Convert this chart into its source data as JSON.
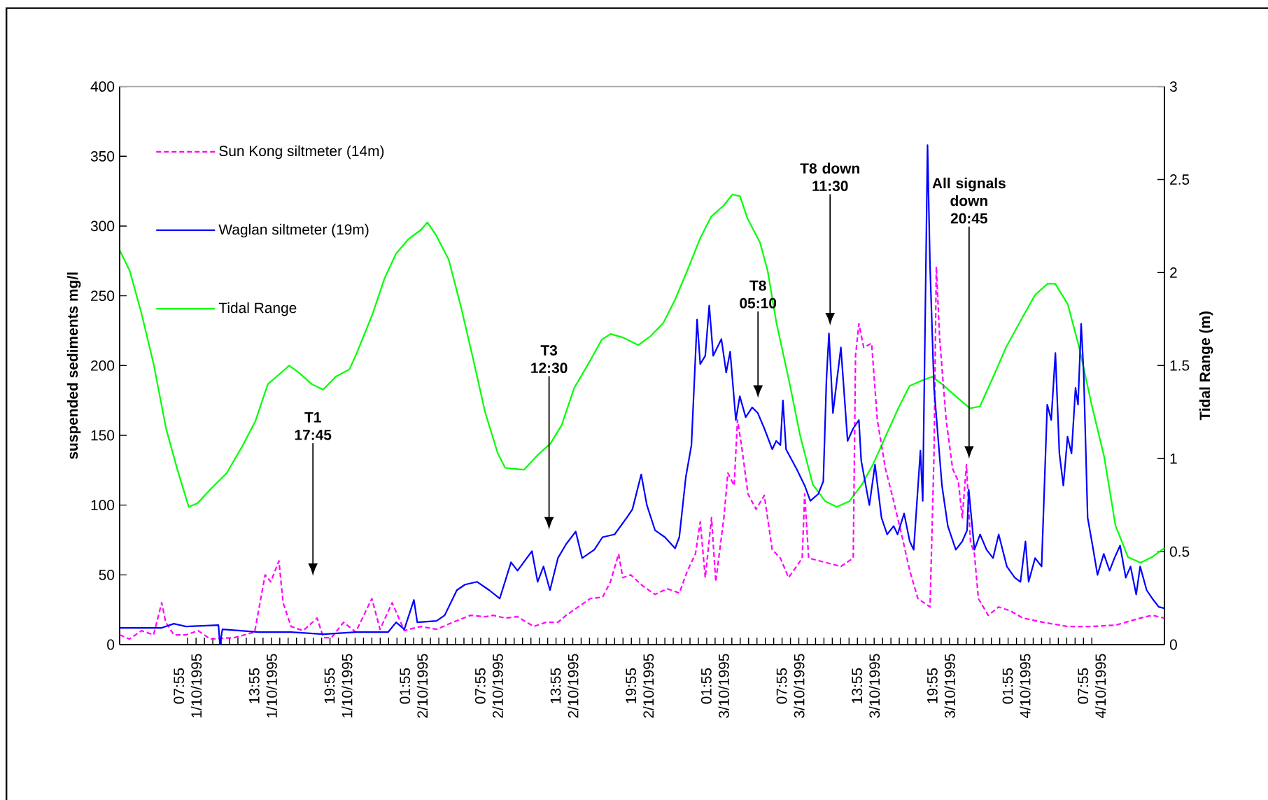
{
  "chart_data": {
    "type": "line",
    "ylabel": "suspended sediments mg/l",
    "y2label": "Tidal Range (m)",
    "xlim": [
      "1995-10-01T02:30",
      "1995-10-04T13:42"
    ],
    "xticks": [
      {
        "value": "1995-10-01T07:55",
        "label": "07:55 1/10/1995"
      },
      {
        "value": "1995-10-01T13:55",
        "label": "13:55 1/10/1995"
      },
      {
        "value": "1995-10-01T19:55",
        "label": "19:55 1/10/1995"
      },
      {
        "value": "1995-10-02T01:55",
        "label": "01:55 2/10/1995"
      },
      {
        "value": "1995-10-02T07:55",
        "label": "07:55 2/10/1995"
      },
      {
        "value": "1995-10-02T13:55",
        "label": "13:55 2/10/1995"
      },
      {
        "value": "1995-10-02T19:55",
        "label": "19:55 2/10/1995"
      },
      {
        "value": "1995-10-03T01:55",
        "label": "01:55 3/10/1995"
      },
      {
        "value": "1995-10-03T07:55",
        "label": "07:55 3/10/1995"
      },
      {
        "value": "1995-10-03T13:55",
        "label": "13:55 3/10/1995"
      },
      {
        "value": "1995-10-03T19:55",
        "label": "19:55 3/10/1995"
      },
      {
        "value": "1995-10-04T01:55",
        "label": "01:55 4/10/1995"
      },
      {
        "value": "1995-10-04T07:55",
        "label": "07:55 4/10/1995"
      }
    ],
    "ylim": [
      0,
      400
    ],
    "yticks": [
      0,
      50,
      100,
      150,
      200,
      250,
      300,
      350,
      400
    ],
    "y2lim": [
      0,
      3
    ],
    "y2ticks": [
      0,
      0.5,
      1,
      1.5,
      2,
      2.5,
      3
    ],
    "legend": "top left",
    "marker": "none",
    "annotations": [
      "T1 17:45",
      "T3 12:30",
      "T8 05:10",
      "T8 down 11:30",
      "All signals down 20:45"
    ],
    "series": [
      {
        "name": "Sun Kong siltmeter (14m)",
        "color": "#ff00ff",
        "line_style": "dashed",
        "x": [
          "1995-10-01T02:30",
          "1995-10-01T03:16",
          "1995-10-01T04:14",
          "1995-10-01T05:12",
          "1995-10-01T05:51",
          "1995-10-01T06:10",
          "1995-10-01T06:49",
          "1995-10-01T07:47",
          "1995-10-01T08:45",
          "1995-10-01T09:43",
          "1995-10-01T11:38",
          "1995-10-01T13:15",
          "1995-10-01T14:05",
          "1995-10-01T14:32",
          "1995-10-01T15:11",
          "1995-10-01T15:31",
          "1995-10-01T16:09",
          "1995-10-01T17:07",
          "1995-10-01T18:13",
          "1995-10-01T18:44",
          "1995-10-01T19:22",
          "1995-10-01T20:20",
          "1995-10-01T21:18",
          "1995-10-01T22:35",
          "1995-10-01T23:14",
          "1995-10-02T00:12",
          "1995-10-02T01:10",
          "1995-10-02T02:28",
          "1995-10-02T03:44",
          "1995-10-02T05:02",
          "1995-10-02T06:27",
          "1995-10-02T07:37",
          "1995-10-02T08:15",
          "1995-10-02T09:13",
          "1995-10-02T10:11",
          "1995-10-02T11:28",
          "1995-10-02T12:26",
          "1995-10-02T13:24",
          "1995-10-02T14:03",
          "1995-10-02T15:01",
          "1995-10-02T15:59",
          "1995-10-02T16:57",
          "1995-10-02T17:35",
          "1995-10-02T18:14",
          "1995-10-02T18:34",
          "1995-10-02T19:12",
          "1995-10-02T20:10",
          "1995-10-02T21:08",
          "1995-10-02T22:06",
          "1995-10-02T23:04",
          "1995-10-02T23:43",
          "1995-10-03T00:21",
          "1995-10-03T00:44",
          "1995-10-03T01:08",
          "1995-10-03T01:38",
          "1995-10-03T01:58",
          "1995-10-03T02:37",
          "1995-10-03T02:56",
          "1995-10-03T03:26",
          "1995-10-03T03:42",
          "1995-10-03T04:01",
          "1995-10-03T04:32",
          "1995-10-03T05:11",
          "1995-10-03T05:50",
          "1995-10-03T06:28",
          "1995-10-03T07:07",
          "1995-10-03T07:46",
          "1995-10-03T08:24",
          "1995-10-03T08:51",
          "1995-10-03T09:03",
          "1995-10-03T09:22",
          "1995-10-03T10:40",
          "1995-10-03T11:56",
          "1995-10-03T12:55",
          "1995-10-03T13:06",
          "1995-10-03T13:22",
          "1995-10-03T13:45",
          "1995-10-03T14:23",
          "1995-10-03T14:50",
          "1995-10-03T15:29",
          "1995-10-03T16:08",
          "1995-10-03T16:46",
          "1995-10-03T17:25",
          "1995-10-03T18:04",
          "1995-10-03T19:02",
          "1995-10-03T19:21",
          "1995-10-03T19:32",
          "1995-10-03T19:48",
          "1995-10-03T20:19",
          "1995-10-03T20:50",
          "1995-10-03T21:17",
          "1995-10-03T21:36",
          "1995-10-03T21:56",
          "1995-10-03T22:15",
          "1995-10-03T22:34",
          "1995-10-03T22:53",
          "1995-10-03T23:40",
          "1995-10-04T00:30",
          "1995-10-04T01:28",
          "1995-10-04T02:26",
          "1995-10-04T04:02",
          "1995-10-04T05:59",
          "1995-10-04T07:55",
          "1995-10-04T09:50",
          "1995-10-04T11:46",
          "1995-10-04T12:44",
          "1995-10-04T13:42"
        ],
        "values": [
          7,
          4,
          10,
          7,
          30,
          16,
          7,
          7,
          10,
          4,
          5,
          9,
          50,
          45,
          60,
          30,
          13,
          10,
          19,
          5,
          5,
          16,
          9,
          33,
          11,
          30,
          10,
          13,
          11,
          16,
          21,
          20,
          21,
          19,
          20,
          13,
          16,
          16,
          21,
          27,
          33,
          34,
          45,
          65,
          48,
          50,
          42,
          36,
          40,
          37,
          53,
          65,
          88,
          48,
          91,
          45,
          91,
          123,
          114,
          161,
          143,
          108,
          97,
          107,
          68,
          62,
          48,
          56,
          62,
          108,
          62,
          59,
          56,
          62,
          207,
          230,
          213,
          216,
          161,
          126,
          103,
          79,
          53,
          33,
          27,
          137,
          271,
          219,
          161,
          126,
          117,
          91,
          129,
          74,
          65,
          33,
          21,
          27,
          24,
          19,
          16,
          13,
          13,
          14,
          19,
          21,
          19
        ]
      },
      {
        "name": "Waglan siltmeter (19m)",
        "color": "#0000ff",
        "line_style": "solid",
        "x": [
          "1995-10-01T02:30",
          "1995-10-01T05:51",
          "1995-10-01T06:49",
          "1995-10-01T07:47",
          "1995-10-01T10:22",
          "1995-10-01T10:29",
          "1995-10-01T10:41",
          "1995-10-01T13:35",
          "1995-10-01T16:09",
          "1995-10-01T18:44",
          "1995-10-01T21:18",
          "1995-10-01T23:53",
          "1995-10-02T00:31",
          "1995-10-02T01:10",
          "1995-10-02T01:56",
          "1995-10-02T02:12",
          "1995-10-02T03:44",
          "1995-10-02T04:23",
          "1995-10-02T05:21",
          "1995-10-02T06:00",
          "1995-10-02T06:58",
          "1995-10-02T07:56",
          "1995-10-02T08:46",
          "1995-10-02T09:40",
          "1995-10-02T10:11",
          "1995-10-02T11:20",
          "1995-10-02T11:47",
          "1995-10-02T12:15",
          "1995-10-02T12:46",
          "1995-10-02T13:24",
          "1995-10-02T14:03",
          "1995-10-02T14:49",
          "1995-10-02T15:20",
          "1995-10-02T16:18",
          "1995-10-02T16:57",
          "1995-10-02T17:55",
          "1995-10-02T18:53",
          "1995-10-02T19:20",
          "1995-10-02T20:02",
          "1995-10-02T20:29",
          "1995-10-02T21:08",
          "1995-10-02T21:55",
          "1995-10-02T22:44",
          "1995-10-02T23:04",
          "1995-10-02T23:35",
          "1995-10-03T00:02",
          "1995-10-03T00:29",
          "1995-10-03T00:44",
          "1995-10-03T01:08",
          "1995-10-03T01:27",
          "1995-10-03T01:46",
          "1995-10-03T02:25",
          "1995-10-03T02:48",
          "1995-10-03T03:07",
          "1995-10-03T03:34",
          "1995-10-03T03:53",
          "1995-10-03T04:21",
          "1995-10-03T04:52",
          "1995-10-03T05:19",
          "1995-10-03T05:50",
          "1995-10-03T06:28",
          "1995-10-03T06:47",
          "1995-10-03T07:07",
          "1995-10-03T07:19",
          "1995-10-03T07:34",
          "1995-10-03T08:24",
          "1995-10-03T09:03",
          "1995-10-03T09:30",
          "1995-10-03T10:08",
          "1995-10-03T10:32",
          "1995-10-03T10:47",
          "1995-10-03T10:59",
          "1995-10-03T11:18",
          "1995-10-03T11:56",
          "1995-10-03T12:28",
          "1995-10-03T12:55",
          "1995-10-03T13:22",
          "1995-10-03T13:33",
          "1995-10-03T14:12",
          "1995-10-03T14:39",
          "1995-10-03T15:10",
          "1995-10-03T15:37",
          "1995-10-03T16:08",
          "1995-10-03T16:27",
          "1995-10-03T16:58",
          "1995-10-03T17:25",
          "1995-10-03T17:44",
          "1995-10-03T18:16",
          "1995-10-03T18:27",
          "1995-10-03T18:50",
          "1995-10-03T19:02",
          "1995-10-03T19:21",
          "1995-10-03T19:59",
          "1995-10-03T20:27",
          "1995-10-03T21:05",
          "1995-10-03T21:36",
          "1995-10-03T21:59",
          "1995-10-03T22:07",
          "1995-10-03T22:34",
          "1995-10-03T23:01",
          "1995-10-03T23:32",
          "1995-10-04T00:03",
          "1995-10-04T00:30",
          "1995-10-04T01:09",
          "1995-10-04T01:47",
          "1995-10-04T02:14",
          "1995-10-04T02:38",
          "1995-10-04T02:53",
          "1995-10-04T03:24",
          "1995-10-04T03:55",
          "1995-10-04T04:22",
          "1995-10-04T04:41",
          "1995-10-04T05:01",
          "1995-10-04T05:20",
          "1995-10-04T05:39",
          "1995-10-04T05:59",
          "1995-10-04T06:18",
          "1995-10-04T06:37",
          "1995-10-04T06:49",
          "1995-10-04T07:04",
          "1995-10-04T07:16",
          "1995-10-04T07:35",
          "1995-10-04T08:02",
          "1995-10-04T08:22",
          "1995-10-04T08:52",
          "1995-10-04T09:20",
          "1995-10-04T09:43",
          "1995-10-04T10:10",
          "1995-10-04T10:37",
          "1995-10-04T11:00",
          "1995-10-04T11:27",
          "1995-10-04T11:46",
          "1995-10-04T12:17",
          "1995-10-04T12:44",
          "1995-10-04T13:15",
          "1995-10-04T13:42"
        ],
        "values": [
          12,
          12,
          15,
          13,
          14,
          0,
          11,
          9,
          9,
          7.5,
          9,
          9,
          16,
          11,
          32,
          16,
          17,
          21,
          39,
          43,
          45,
          39,
          33,
          59,
          53,
          67,
          45,
          56,
          39,
          62,
          72,
          81,
          62,
          68,
          77,
          79,
          91,
          97,
          122,
          100,
          82,
          77,
          69,
          77,
          120,
          143,
          233,
          201,
          207,
          243,
          207,
          219,
          195,
          210,
          161,
          178,
          163,
          170,
          166,
          155,
          140,
          146,
          143,
          175,
          140,
          126,
          114,
          103,
          108,
          117,
          190,
          223,
          166,
          213,
          146,
          155,
          161,
          132,
          100,
          129,
          91,
          79,
          85,
          79,
          94,
          74,
          68,
          139,
          103,
          358,
          271,
          184,
          114,
          85,
          68,
          74,
          82,
          111,
          68,
          79,
          68,
          62,
          79,
          56,
          48,
          45,
          74,
          45,
          62,
          56,
          172,
          161,
          209,
          137,
          114,
          149,
          137,
          184,
          172,
          230,
          195,
          91,
          68,
          50,
          65,
          53,
          62,
          71,
          48,
          56,
          36,
          56,
          39,
          33,
          27,
          26
        ]
      },
      {
        "name": "Tidal Range",
        "color": "#00ff00",
        "line_style": "solid",
        "axis": "y2",
        "x": [
          "1995-10-01T02:30",
          "1995-10-01T03:18",
          "1995-10-01T04:12",
          "1995-10-01T05:12",
          "1995-10-01T06:12",
          "1995-10-01T07:06",
          "1995-10-01T08:00",
          "1995-10-01T08:42",
          "1995-10-01T09:48",
          "1995-10-01T11:00",
          "1995-10-01T12:18",
          "1995-10-01T13:18",
          "1995-10-01T14:18",
          "1995-10-01T15:30",
          "1995-10-01T16:00",
          "1995-10-01T16:48",
          "1995-10-01T17:48",
          "1995-10-01T18:42",
          "1995-10-01T19:42",
          "1995-10-01T20:48",
          "1995-10-01T21:24",
          "1995-10-01T22:36",
          "1995-10-01T23:36",
          "1995-10-02T00:30",
          "1995-10-02T01:30",
          "1995-10-02T02:30",
          "1995-10-02T03:00",
          "1995-10-02T03:42",
          "1995-10-02T04:42",
          "1995-10-02T05:42",
          "1995-10-02T06:36",
          "1995-10-02T07:36",
          "1995-10-02T08:36",
          "1995-10-02T09:12",
          "1995-10-02T10:42",
          "1995-10-02T11:48",
          "1995-10-02T12:48",
          "1995-10-02T13:42",
          "1995-10-02T14:42",
          "1995-10-02T16:00",
          "1995-10-02T16:54",
          "1995-10-02T17:36",
          "1995-10-02T18:36",
          "1995-10-02T19:48",
          "1995-10-02T20:48",
          "1995-10-02T21:48",
          "1995-10-02T22:42",
          "1995-10-02T23:42",
          "1995-10-03T00:42",
          "1995-10-03T01:36",
          "1995-10-03T02:36",
          "1995-10-03T03:18",
          "1995-10-03T03:54",
          "1995-10-03T04:30",
          "1995-10-03T05:30",
          "1995-10-03T06:06",
          "1995-10-03T06:48",
          "1995-10-03T07:48",
          "1995-10-03T08:42",
          "1995-10-03T09:42",
          "1995-10-03T10:42",
          "1995-10-03T11:36",
          "1995-10-03T12:36",
          "1995-10-03T13:36",
          "1995-10-03T14:30",
          "1995-10-03T15:30",
          "1995-10-03T16:30",
          "1995-10-03T17:24",
          "1995-10-03T18:24",
          "1995-10-03T19:12",
          "1995-10-03T20:00",
          "1995-10-03T21:00",
          "1995-10-03T22:12",
          "1995-10-03T23:00",
          "1995-10-04T00:12",
          "1995-10-04T01:06",
          "1995-10-04T02:24",
          "1995-10-04T03:24",
          "1995-10-04T04:24",
          "1995-10-04T05:00",
          "1995-10-04T06:00",
          "1995-10-04T06:54",
          "1995-10-04T07:54",
          "1995-10-04T08:54",
          "1995-10-04T09:48",
          "1995-10-04T10:48",
          "1995-10-04T11:48",
          "1995-10-04T12:42",
          "1995-10-04T13:42"
        ],
        "values": [
          2.12,
          2.01,
          1.79,
          1.51,
          1.16,
          0.94,
          0.74,
          0.76,
          0.84,
          0.92,
          1.07,
          1.2,
          1.4,
          1.47,
          1.5,
          1.46,
          1.4,
          1.37,
          1.44,
          1.48,
          1.57,
          1.77,
          1.97,
          2.1,
          2.18,
          2.23,
          2.27,
          2.2,
          2.07,
          1.81,
          1.55,
          1.25,
          1.03,
          0.95,
          0.94,
          1.02,
          1.08,
          1.18,
          1.38,
          1.53,
          1.64,
          1.67,
          1.65,
          1.61,
          1.66,
          1.73,
          1.85,
          2.01,
          2.18,
          2.3,
          2.36,
          2.42,
          2.41,
          2.29,
          2.16,
          2.01,
          1.73,
          1.42,
          1.12,
          0.86,
          0.77,
          0.74,
          0.77,
          0.86,
          0.97,
          1.12,
          1.27,
          1.39,
          1.42,
          1.44,
          1.4,
          1.34,
          1.27,
          1.28,
          1.46,
          1.6,
          1.76,
          1.88,
          1.94,
          1.94,
          1.83,
          1.6,
          1.29,
          1.01,
          0.64,
          0.47,
          0.44,
          0.47,
          0.52
        ]
      }
    ]
  }
}
